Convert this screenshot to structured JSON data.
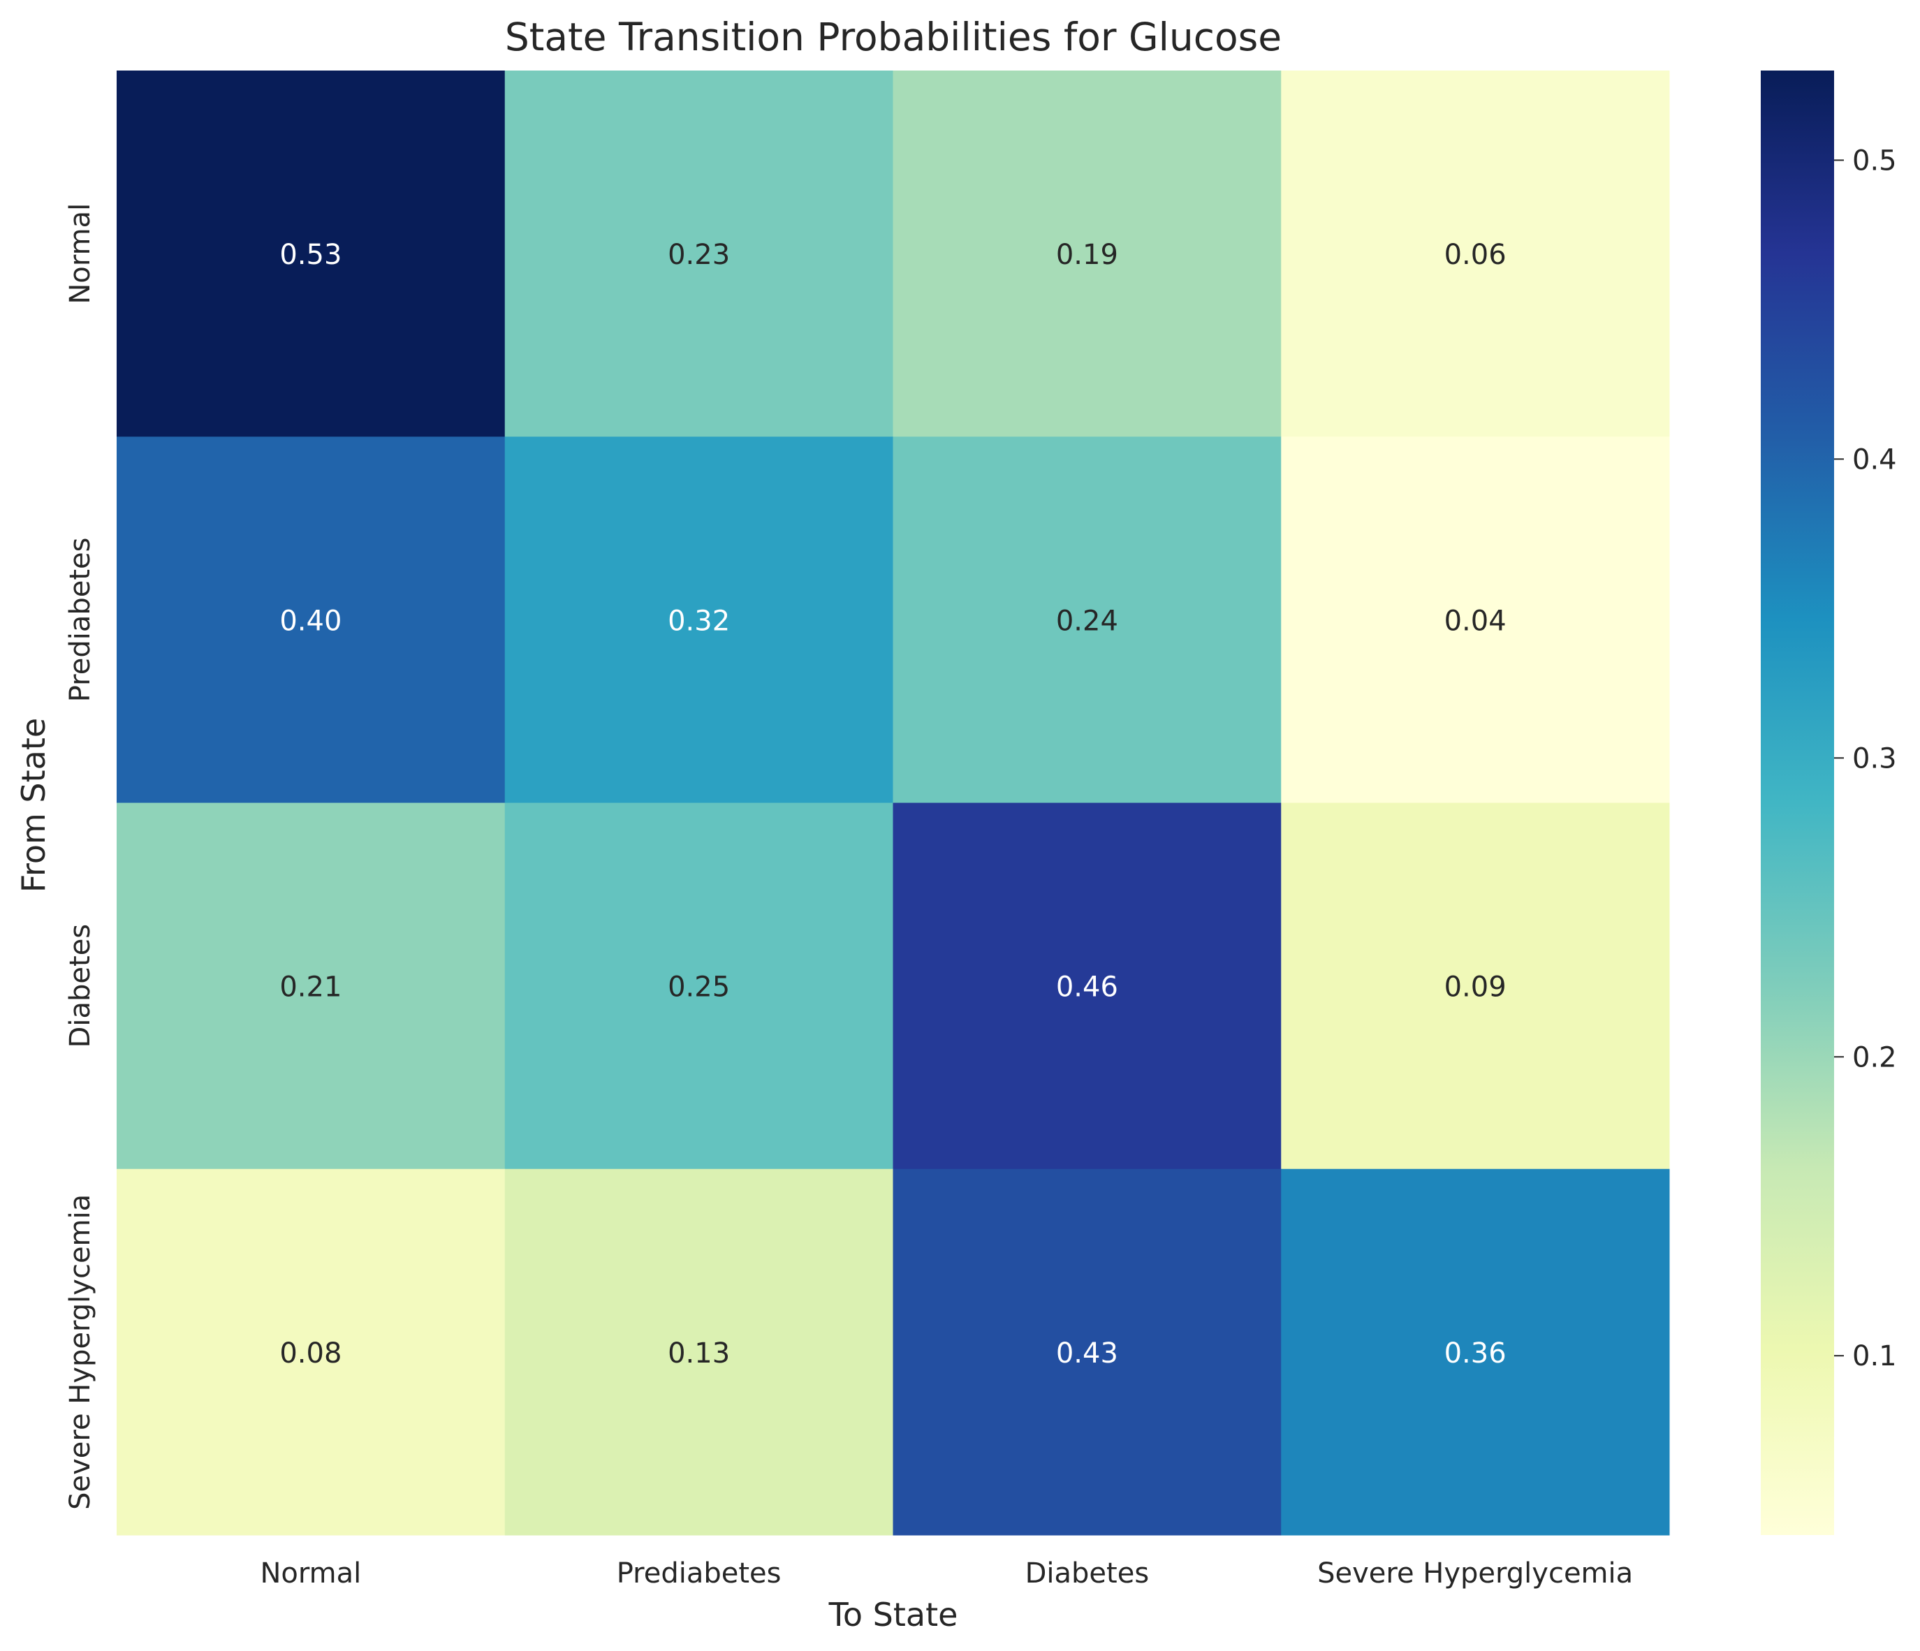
{
  "chart_data": {
    "type": "heatmap",
    "title": "State Transition Probabilities for Glucose",
    "xlabel": "To State",
    "ylabel": "From State",
    "x_categories": [
      "Normal",
      "Prediabetes",
      "Diabetes",
      "Severe Hyperglycemia"
    ],
    "y_categories": [
      "Normal",
      "Prediabetes",
      "Diabetes",
      "Severe Hyperglycemia"
    ],
    "values": [
      [
        0.53,
        0.23,
        0.19,
        0.06
      ],
      [
        0.4,
        0.32,
        0.24,
        0.04
      ],
      [
        0.21,
        0.25,
        0.46,
        0.09
      ],
      [
        0.08,
        0.13,
        0.43,
        0.36
      ]
    ],
    "colormap": "YlGnBu",
    "colorbar": {
      "vmin": 0.04,
      "vmax": 0.53,
      "ticks": [
        0.1,
        0.2,
        0.3,
        0.4,
        0.5
      ],
      "tick_labels": [
        "0.1",
        "0.2",
        "0.3",
        "0.4",
        "0.5"
      ]
    },
    "annotation_format": "0.00",
    "grid": false
  }
}
